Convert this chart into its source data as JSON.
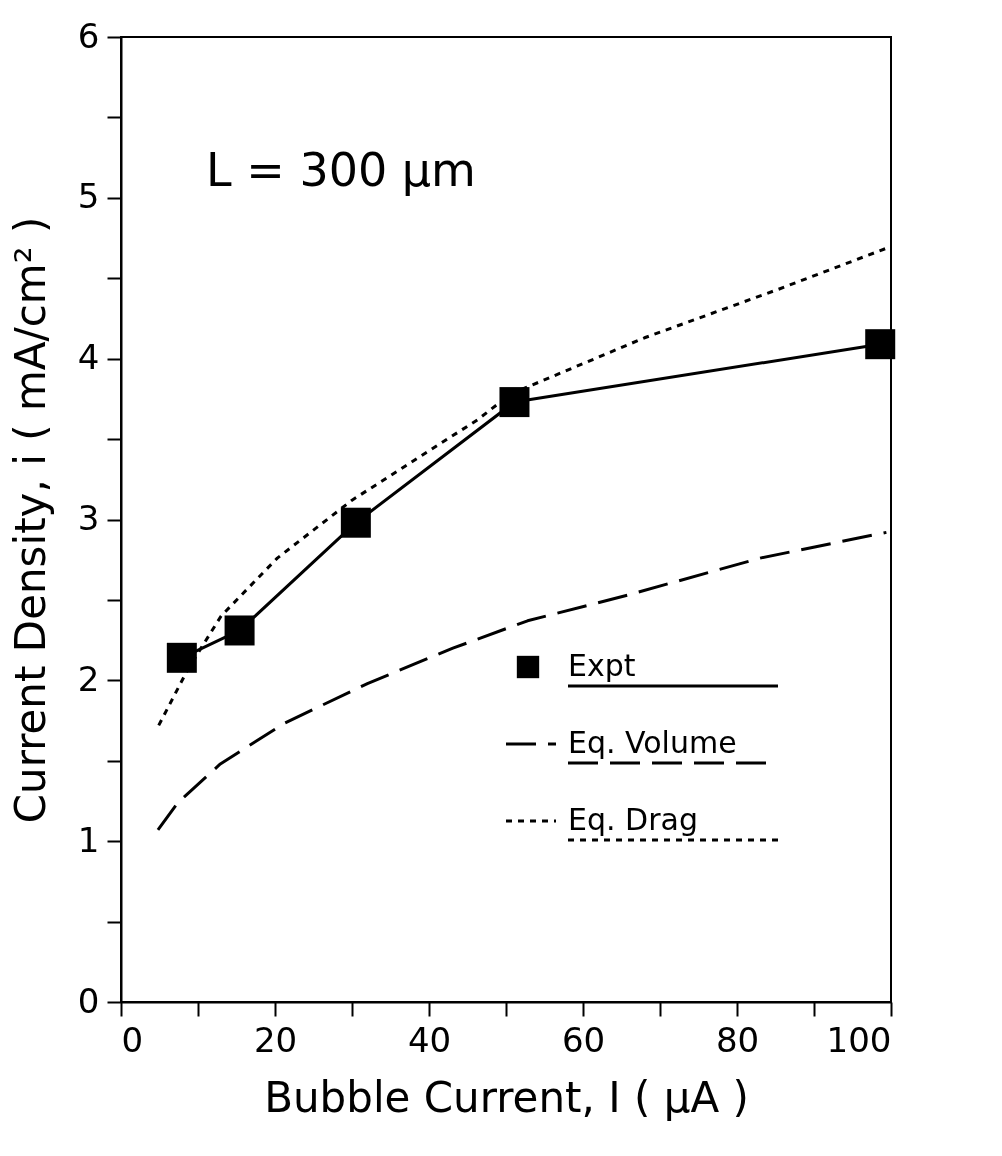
{
  "chart_data": {
    "type": "line",
    "xlabel": "Bubble Current, I ( μA )",
    "ylabel": "Current Density, i ( mA/cm² )",
    "annotations": [
      "L = 300 μm"
    ],
    "xlim": [
      0,
      100
    ],
    "ylim": [
      0,
      6
    ],
    "xticks": [
      0,
      {
        "value": 10,
        "label": null
      },
      20,
      {
        "value": 30,
        "label": null
      },
      40,
      {
        "value": 50,
        "label": null
      },
      60,
      {
        "value": 70,
        "label": null
      },
      80,
      {
        "value": 90,
        "label": null
      },
      100
    ],
    "yticks": [
      0,
      {
        "value": 0.5,
        "label": null
      },
      1,
      {
        "value": 1.5,
        "label": null
      },
      2,
      {
        "value": 2.5,
        "label": null
      },
      3,
      {
        "value": 3.5,
        "label": null
      },
      4,
      {
        "value": 4.5,
        "label": null
      },
      5,
      {
        "value": 5.5,
        "label": null
      },
      6
    ],
    "legend": "bottom right",
    "grid": false,
    "series": [
      {
        "name": "Expt",
        "color": "#000000",
        "line_style": "solid",
        "marker": "square",
        "x": [
          7.9,
          15.4,
          30.5,
          51.1,
          98.6
        ],
        "values": [
          2.14,
          2.31,
          2.98,
          3.73,
          4.09
        ]
      },
      {
        "name": "Eq. Volume",
        "color": "#000000",
        "line_style": "dashed",
        "marker": "none",
        "x": [
          4.8,
          7.4,
          12.9,
          21.1,
          32,
          43.1,
          52.8,
          65.8,
          83,
          99.4
        ],
        "values": [
          1.07,
          1.24,
          1.48,
          1.73,
          1.98,
          2.2,
          2.37,
          2.53,
          2.76,
          2.92
        ]
      },
      {
        "name": "Eq. Drag",
        "color": "#000000",
        "line_style": "dotted",
        "marker": "none",
        "x": [
          4.9,
          8.7,
          13,
          20.3,
          30,
          46.3,
          50.6,
          68,
          85.3,
          99.6
        ],
        "values": [
          1.72,
          2.07,
          2.4,
          2.76,
          3.12,
          3.62,
          3.78,
          4.13,
          4.43,
          4.69
        ]
      }
    ]
  }
}
